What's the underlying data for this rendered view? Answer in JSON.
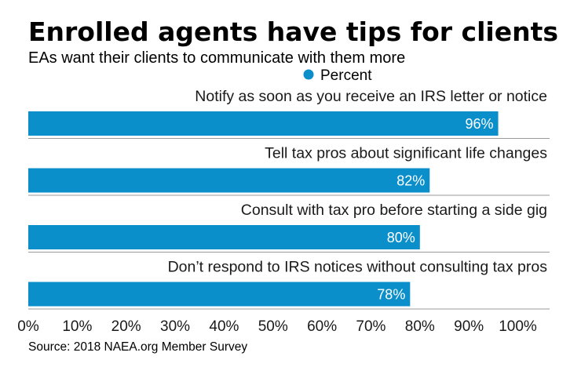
{
  "chart_data": {
    "type": "bar",
    "orientation": "horizontal",
    "title": "Enrolled agents have tips for clients",
    "subtitle": "EAs want their clients to communicate with them more",
    "legend": {
      "entries": [
        "Percent"
      ],
      "placement": "top"
    },
    "categories": [
      "Notify as soon as you receive an IRS letter or notice",
      "Tell tax pros about significant life changes",
      "Consult with tax pro before starting a side gig",
      "Don’t respond to IRS notices without consulting tax pros"
    ],
    "series": [
      {
        "name": "Percent",
        "values": [
          96,
          82,
          80,
          78
        ],
        "data_labels": [
          "96%",
          "82%",
          "80%",
          "78%"
        ]
      }
    ],
    "xlim": [
      0,
      100
    ],
    "x_ticks": [
      0,
      10,
      20,
      30,
      40,
      50,
      60,
      70,
      80,
      90,
      100
    ],
    "x_tick_labels": [
      "0%",
      "10%",
      "20%",
      "30%",
      "40%",
      "50%",
      "60%",
      "70%",
      "80%",
      "90%",
      "100%"
    ],
    "grid": false,
    "source": "Source: 2018 NAEA.org Member Survey",
    "colors": {
      "bar": "#0a8fcb",
      "divider": "#9a9a9a",
      "text": "#1a1a1a"
    }
  }
}
